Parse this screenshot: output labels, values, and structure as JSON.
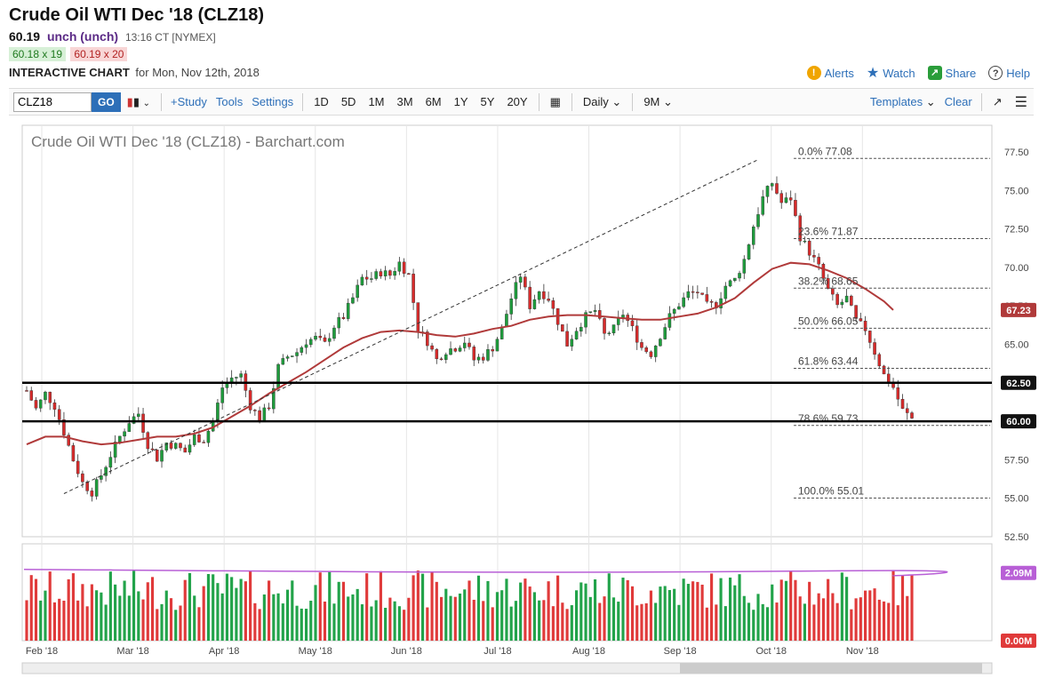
{
  "header": {
    "title": "Crude Oil WTI Dec '18 (CLZ18)",
    "last_price": "60.19",
    "change": "unch (unch)",
    "time": "13:16 CT [NYMEX]",
    "bid": "60.18 x 19",
    "ask": "60.19 x 20",
    "interactive_label": "INTERACTIVE CHART",
    "interactive_for": "for Mon, Nov 12th, 2018",
    "links": {
      "alerts": "Alerts",
      "watch": "Watch",
      "share": "Share",
      "help": "Help"
    }
  },
  "toolbar": {
    "symbol_value": "CLZ18",
    "go": "GO",
    "study": "+Study",
    "tools": "Tools",
    "settings": "Settings",
    "ranges": [
      "1D",
      "5D",
      "1M",
      "3M",
      "6M",
      "1Y",
      "5Y",
      "20Y"
    ],
    "period": "Daily",
    "span": "9M",
    "templates": "Templates",
    "clear": "Clear"
  },
  "colors": {
    "up": "#1e9c3c",
    "down": "#d62b2b",
    "ma": "#b03a3a",
    "vol_ma": "#b85fd6",
    "vol_up": "#22a34a",
    "vol_down": "#e03a3a"
  },
  "chart_data": {
    "type": "candlestick",
    "title": "Crude Oil WTI Dec '18 (CLZ18) - Barchart.com",
    "ylim": [
      52.5,
      77.5
    ],
    "y_ticks": [
      "77.50",
      "75.00",
      "72.50",
      "70.00",
      "67.50",
      "65.00",
      "62.50",
      "60.00",
      "57.50",
      "55.00",
      "52.50"
    ],
    "x_ticks": [
      "Feb '18",
      "Mar '18",
      "Apr '18",
      "May '18",
      "Jun '18",
      "Jul '18",
      "Aug '18",
      "Sep '18",
      "Oct '18",
      "Nov '18"
    ],
    "close_path": [
      [
        0,
        62.0
      ],
      [
        2,
        60.8
      ],
      [
        4,
        61.8
      ],
      [
        6,
        61.0
      ],
      [
        8,
        59.3
      ],
      [
        10,
        57.5
      ],
      [
        12,
        56.0
      ],
      [
        14,
        55.4
      ],
      [
        16,
        56.5
      ],
      [
        18,
        57.8
      ],
      [
        20,
        59.0
      ],
      [
        22,
        60.0
      ],
      [
        24,
        60.5
      ],
      [
        26,
        58.5
      ],
      [
        28,
        57.6
      ],
      [
        30,
        58.6
      ],
      [
        32,
        58.4
      ],
      [
        34,
        58.0
      ],
      [
        36,
        59.0
      ],
      [
        38,
        58.8
      ],
      [
        40,
        60.0
      ],
      [
        42,
        62.2
      ],
      [
        44,
        62.8
      ],
      [
        46,
        63.0
      ],
      [
        48,
        61.0
      ],
      [
        50,
        60.2
      ],
      [
        52,
        61.0
      ],
      [
        54,
        63.5
      ],
      [
        56,
        64.2
      ],
      [
        58,
        64.5
      ],
      [
        60,
        65.2
      ],
      [
        62,
        65.4
      ],
      [
        64,
        65.0
      ],
      [
        66,
        66.2
      ],
      [
        68,
        66.8
      ],
      [
        70,
        68.0
      ],
      [
        72,
        69.3
      ],
      [
        74,
        69.3
      ],
      [
        76,
        69.7
      ],
      [
        78,
        69.5
      ],
      [
        80,
        70.3
      ],
      [
        82,
        69.5
      ],
      [
        84,
        66.0
      ],
      [
        86,
        65.2
      ],
      [
        88,
        64.0
      ],
      [
        90,
        64.6
      ],
      [
        92,
        64.8
      ],
      [
        94,
        65.2
      ],
      [
        96,
        64.0
      ],
      [
        98,
        64.2
      ],
      [
        100,
        64.8
      ],
      [
        102,
        66.0
      ],
      [
        104,
        68.0
      ],
      [
        106,
        69.5
      ],
      [
        108,
        67.5
      ],
      [
        110,
        68.5
      ],
      [
        112,
        68.0
      ],
      [
        114,
        66.5
      ],
      [
        116,
        65.0
      ],
      [
        118,
        66.0
      ],
      [
        120,
        66.8
      ],
      [
        122,
        67.2
      ],
      [
        124,
        65.6
      ],
      [
        126,
        66.0
      ],
      [
        128,
        67.0
      ],
      [
        130,
        66.0
      ],
      [
        132,
        64.8
      ],
      [
        134,
        64.4
      ],
      [
        136,
        65.6
      ],
      [
        138,
        66.8
      ],
      [
        140,
        67.6
      ],
      [
        142,
        68.3
      ],
      [
        144,
        68.4
      ],
      [
        146,
        67.5
      ],
      [
        148,
        67.6
      ],
      [
        150,
        68.8
      ],
      [
        152,
        69.2
      ],
      [
        154,
        70.5
      ],
      [
        156,
        72.7
      ],
      [
        158,
        74.5
      ],
      [
        160,
        75.5
      ],
      [
        162,
        74.2
      ],
      [
        164,
        74.5
      ],
      [
        166,
        72.0
      ],
      [
        168,
        71.0
      ],
      [
        170,
        70.0
      ],
      [
        172,
        68.5
      ],
      [
        174,
        67.5
      ],
      [
        176,
        68.0
      ],
      [
        178,
        66.5
      ],
      [
        180,
        66.0
      ],
      [
        182,
        64.5
      ],
      [
        184,
        63.0
      ],
      [
        186,
        62.2
      ],
      [
        188,
        60.7
      ],
      [
        190,
        60.19
      ]
    ],
    "moving_average": [
      [
        0,
        58.5
      ],
      [
        4,
        59.0
      ],
      [
        8,
        59.0
      ],
      [
        12,
        58.7
      ],
      [
        16,
        58.5
      ],
      [
        20,
        58.6
      ],
      [
        24,
        58.8
      ],
      [
        28,
        59.0
      ],
      [
        32,
        59.0
      ],
      [
        36,
        59.2
      ],
      [
        40,
        59.6
      ],
      [
        44,
        60.3
      ],
      [
        48,
        61.0
      ],
      [
        52,
        61.8
      ],
      [
        56,
        62.5
      ],
      [
        60,
        63.2
      ],
      [
        64,
        64.0
      ],
      [
        68,
        64.8
      ],
      [
        72,
        65.4
      ],
      [
        76,
        65.8
      ],
      [
        80,
        65.9
      ],
      [
        84,
        65.8
      ],
      [
        88,
        65.6
      ],
      [
        92,
        65.5
      ],
      [
        96,
        65.7
      ],
      [
        100,
        66.0
      ],
      [
        104,
        66.2
      ],
      [
        108,
        66.6
      ],
      [
        112,
        66.8
      ],
      [
        116,
        66.9
      ],
      [
        120,
        66.9
      ],
      [
        124,
        66.8
      ],
      [
        128,
        66.7
      ],
      [
        132,
        66.6
      ],
      [
        136,
        66.6
      ],
      [
        140,
        66.8
      ],
      [
        144,
        67.0
      ],
      [
        148,
        67.4
      ],
      [
        152,
        68.0
      ],
      [
        156,
        69.0
      ],
      [
        160,
        69.9
      ],
      [
        164,
        70.3
      ],
      [
        168,
        70.2
      ],
      [
        172,
        69.8
      ],
      [
        176,
        69.3
      ],
      [
        180,
        68.6
      ],
      [
        184,
        67.8
      ],
      [
        186,
        67.23
      ]
    ],
    "fibonacci": [
      {
        "label": "0.0% 77.08",
        "value": 77.08
      },
      {
        "label": "23.6% 71.87",
        "value": 71.87
      },
      {
        "label": "38.2% 68.65",
        "value": 68.65
      },
      {
        "label": "50.0% 66.05",
        "value": 66.05
      },
      {
        "label": "61.8% 63.44",
        "value": 63.44
      },
      {
        "label": "78.6% 59.73",
        "value": 59.73
      },
      {
        "label": "100.0% 55.01",
        "value": 55.01
      }
    ],
    "horizontal_lines": [
      62.5,
      60.0
    ],
    "trendline": [
      [
        8,
        55.3
      ],
      [
        157,
        77.0
      ]
    ],
    "price_badges": [
      {
        "label": "67.23",
        "value": 67.23,
        "color": "#b03a3a"
      },
      {
        "label": "62.50",
        "value": 62.5,
        "color": "#111111"
      },
      {
        "label": "60.00",
        "value": 60.0,
        "color": "#111111"
      }
    ],
    "volume": {
      "badges": [
        {
          "label": "2.09M",
          "color": "#b85fd6"
        },
        {
          "label": "0.00M",
          "color": "#e03a3a"
        }
      ],
      "ma_level": 0.7
    }
  }
}
